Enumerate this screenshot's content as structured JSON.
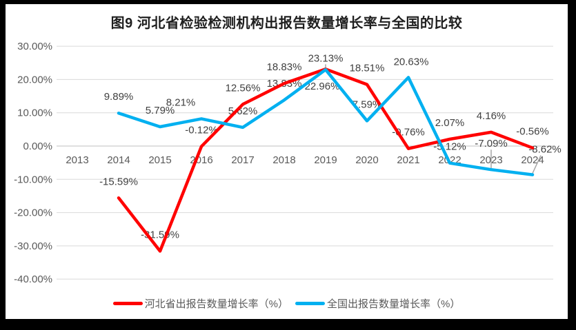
{
  "frame": {
    "background": "#000000",
    "chart_background": "#ffffff"
  },
  "chart_data": {
    "type": "line",
    "title": "图9 河北省检验检测机构出报告数量增长率与全国的比较",
    "categories": [
      "2013",
      "2014",
      "2015",
      "2016",
      "2017",
      "2018",
      "2019",
      "2020",
      "2021",
      "2022",
      "2023",
      "2024"
    ],
    "series": [
      {
        "name": "河北省出报告数量增长率（%）",
        "color": "#FF0000",
        "values": [
          null,
          -15.59,
          -31.59,
          -0.12,
          12.56,
          18.83,
          23.13,
          18.51,
          -0.76,
          2.07,
          4.16,
          -0.56
        ],
        "labels": [
          null,
          "-15.59%",
          "-31.59%",
          "-0.12%",
          "12.56%",
          "18.83%",
          "23.13%",
          "18.51%",
          "-0.76%",
          "2.07%",
          "4.16%",
          "-0.56%"
        ]
      },
      {
        "name": "全国出报告数量增长率（%）",
        "color": "#00B0F0",
        "values": [
          null,
          9.89,
          5.79,
          8.21,
          5.62,
          13.83,
          22.96,
          7.59,
          20.63,
          -5.12,
          -7.09,
          -8.62
        ],
        "labels": [
          null,
          "9.89%",
          "5.79%",
          "8.21%",
          "5.62%",
          "13.83%",
          "22.96%",
          "7.59%",
          "20.63%",
          "-5.12%",
          "-7.09%",
          "-8.62%"
        ]
      }
    ],
    "y_axis": {
      "min": -40,
      "max": 30,
      "step": 10,
      "tick_values": [
        30,
        20,
        10,
        0,
        -10,
        -20,
        -30,
        -40
      ],
      "tick_labels": [
        "30.00%",
        "20.00%",
        "10.00%",
        "0.00%",
        "-10.00%",
        "-20.00%",
        "-30.00%",
        "-40.00%"
      ]
    },
    "gridlines": "horizontal",
    "legend_position": "bottom",
    "colors": {
      "axis_text": "#595959",
      "data_label": "#404040",
      "gridline": "#D9D9D9",
      "zero_line": "#BFBFBF",
      "leader_line": "#A6A6A6"
    },
    "label_overrides": {
      "0": {
        "6": {
          "dy": -16,
          "leader": "v"
        }
      },
      "1": {
        "3": {
          "dx": -30
        },
        "6": {
          "dx": -5,
          "dy": 24
        },
        "8": {
          "dx": 4,
          "dy": -23
        },
        "10": {
          "dy": -38,
          "leader": "v"
        },
        "11": {
          "dx": 18,
          "dy": -37,
          "leader": "d"
        }
      }
    }
  }
}
